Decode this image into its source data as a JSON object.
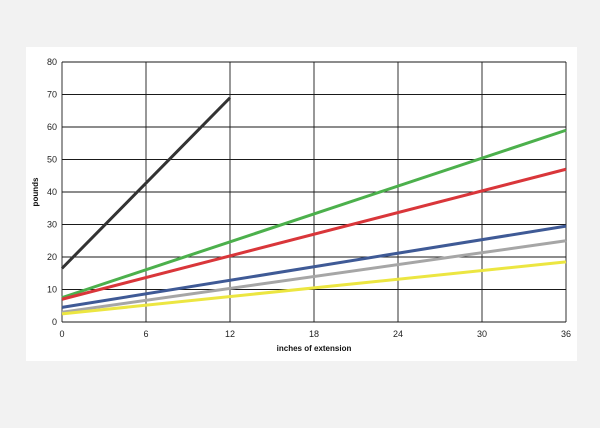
{
  "chart_data": {
    "type": "line",
    "title": "",
    "xlabel": "inches of extension",
    "ylabel": "pounds",
    "xlim": [
      0,
      36
    ],
    "ylim": [
      0,
      80
    ],
    "xticks": [
      "0",
      "6",
      "12",
      "18",
      "24",
      "30",
      "36"
    ],
    "yticks": [
      "0",
      "10",
      "20",
      "30",
      "40",
      "50",
      "60",
      "70",
      "80"
    ],
    "grid": true,
    "legend": "none",
    "series": [
      {
        "color": "#333333",
        "x": [
          0,
          12
        ],
        "y": [
          16.5,
          69
        ]
      },
      {
        "color": "#4cb04c",
        "x": [
          0,
          36
        ],
        "y": [
          7.5,
          59
        ]
      },
      {
        "color": "#d9363a",
        "x": [
          0,
          36
        ],
        "y": [
          7,
          47
        ]
      },
      {
        "color": "#3f5a96",
        "x": [
          0,
          36
        ],
        "y": [
          4.5,
          29.5
        ]
      },
      {
        "color": "#a6a6a6",
        "x": [
          0,
          36
        ],
        "y": [
          3,
          25
        ]
      },
      {
        "color": "#ece641",
        "x": [
          0,
          36
        ],
        "y": [
          2.5,
          18.5
        ]
      }
    ]
  }
}
